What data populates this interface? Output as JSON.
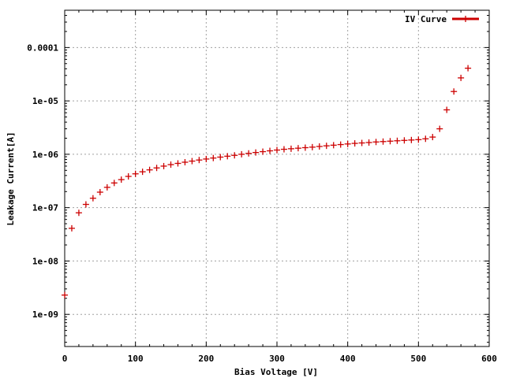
{
  "chart_data": {
    "type": "scatter",
    "xlabel": "Bias Voltage [V]",
    "ylabel": "Leakage Current[A]",
    "xlim": [
      0,
      600
    ],
    "ylim": [
      2.5e-10,
      0.0005
    ],
    "yscale": "log",
    "grid": true,
    "legend_position": "top-right",
    "x_ticks": [
      {
        "value": 0,
        "label": "0"
      },
      {
        "value": 100,
        "label": "100"
      },
      {
        "value": 200,
        "label": "200"
      },
      {
        "value": 300,
        "label": "300"
      },
      {
        "value": 400,
        "label": "400"
      },
      {
        "value": 500,
        "label": "500"
      },
      {
        "value": 600,
        "label": "600"
      }
    ],
    "y_ticks": [
      {
        "value": 1e-09,
        "label": "1e-09"
      },
      {
        "value": 1e-08,
        "label": "1e-08"
      },
      {
        "value": 1e-07,
        "label": "1e-07"
      },
      {
        "value": 1e-06,
        "label": "1e-06"
      },
      {
        "value": 1e-05,
        "label": "1e-05"
      },
      {
        "value": 0.0001,
        "label": "0.0001"
      }
    ],
    "series": [
      {
        "name": "IV Curve",
        "color": "#cc0000",
        "marker": "plus",
        "x": [
          0,
          10,
          20,
          30,
          40,
          50,
          60,
          70,
          80,
          90,
          100,
          110,
          120,
          130,
          140,
          150,
          160,
          170,
          180,
          190,
          200,
          210,
          220,
          230,
          240,
          250,
          260,
          270,
          280,
          290,
          300,
          310,
          320,
          330,
          340,
          350,
          360,
          370,
          380,
          390,
          400,
          410,
          420,
          430,
          440,
          450,
          460,
          470,
          480,
          490,
          500,
          510,
          520,
          530,
          540,
          550,
          560,
          570
        ],
        "y": [
          2.3e-09,
          4.1e-08,
          8e-08,
          1.15e-07,
          1.5e-07,
          1.95e-07,
          2.4e-07,
          2.9e-07,
          3.35e-07,
          3.85e-07,
          4.3e-07,
          4.7e-07,
          5.1e-07,
          5.55e-07,
          6e-07,
          6.4e-07,
          6.75e-07,
          7.1e-07,
          7.45e-07,
          7.8e-07,
          8.15e-07,
          8.5e-07,
          8.85e-07,
          9.2e-07,
          9.55e-07,
          1e-06,
          1.04e-06,
          1.08e-06,
          1.12e-06,
          1.16e-06,
          1.2e-06,
          1.24e-06,
          1.27e-06,
          1.3e-06,
          1.33e-06,
          1.36e-06,
          1.4e-06,
          1.44e-06,
          1.48e-06,
          1.52e-06,
          1.56e-06,
          1.6e-06,
          1.63e-06,
          1.66e-06,
          1.7e-06,
          1.73e-06,
          1.76e-06,
          1.79e-06,
          1.82e-06,
          1.85e-06,
          1.88e-06,
          1.95e-06,
          2.1e-06,
          3e-06,
          6.8e-06,
          1.5e-05,
          2.7e-05,
          4.1e-05
        ]
      }
    ]
  }
}
